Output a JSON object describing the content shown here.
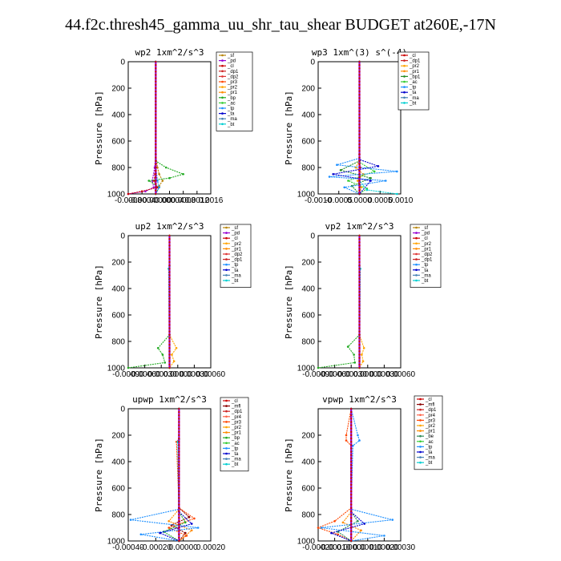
{
  "figure_title": "44.f2c.thresh45_gamma_uu_shr_tau_shear  BUDGET at260E,-17N",
  "colors": {
    "sf": "#b8860b",
    "pd": "#9400d3",
    "cl": "#cc0000",
    "dp1": "#cc2222",
    "dp2": "#dd3333",
    "pr1": "#ff8c00",
    "pr2": "#ffa500",
    "pr3": "#ff4500",
    "pr4": "#ff6347",
    "bp": "#22aa22",
    "bp1": "#228b22",
    "ac": "#33cc33",
    "tp": "#1e90ff",
    "ta": "#0000cd",
    "ma": "#4682b4",
    "bt": "#00ced1",
    "mfl": "#8b0000",
    "be": "#2e8b57"
  },
  "chart_data": [
    {
      "type": "line",
      "title": "wp2   1xm^2/s^3",
      "ylabel": "Pressure [hPa]",
      "xlim": [
        -0.0008,
        0.0016
      ],
      "xticks": [
        "-0.0008",
        "-0.0004",
        "-0.00000",
        "0.00004",
        "0.0008",
        "0.0012",
        "0.0016"
      ],
      "ylim": [
        1000,
        0
      ],
      "yticks": [
        "0",
        "200",
        "400",
        "600",
        "800",
        "1000"
      ],
      "legend": [
        "_sf",
        "_pd",
        "_cl",
        "_dp1",
        "_dp2",
        "_pr3",
        "_pr2",
        "_pr1",
        "_bp",
        "_ac",
        "_tp",
        "_ta",
        "_ma",
        "_bt"
      ],
      "series": [
        {
          "name": "_sf",
          "color": "sf",
          "p": [
            0,
            700,
            800,
            850,
            900,
            940,
            970,
            1000
          ],
          "v": [
            0,
            0,
            5e-05,
            0.0001,
            0.0002,
            0.0001,
            0,
            0
          ]
        },
        {
          "name": "_pd",
          "color": "pd",
          "p": [
            0,
            700,
            800,
            900,
            950,
            980,
            1000
          ],
          "v": [
            0,
            0,
            -3e-05,
            -0.0001,
            -6e-05,
            -0.0003,
            -0.0008
          ]
        },
        {
          "name": "_cl",
          "color": "cl",
          "p": [
            0,
            750,
            850,
            900,
            950,
            980,
            1000
          ],
          "v": [
            0,
            0,
            -2e-05,
            -5e-05,
            5e-05,
            -0.0004,
            -0.0008
          ]
        },
        {
          "name": "_bp",
          "color": "bp",
          "p": [
            0,
            750,
            800,
            850,
            880,
            900,
            950,
            1000
          ],
          "v": [
            0,
            0,
            0.0003,
            0.0008,
            0.0004,
            -0.0002,
            0.0001,
            0
          ]
        },
        {
          "name": "_tp",
          "color": "tp",
          "p": [
            0,
            800,
            900,
            950,
            1000
          ],
          "v": [
            0,
            0,
            5e-05,
            0.0001,
            0
          ]
        },
        {
          "name": "_bt",
          "color": "bt",
          "p": [
            0,
            1000
          ],
          "v": [
            0,
            0
          ]
        }
      ]
    },
    {
      "type": "line",
      "title": "wp3   1xm^(3) s^(-4)",
      "ylabel": "Pressure [hPa]",
      "xlim": [
        -0.0011,
        0.0011
      ],
      "xticks": [
        "-0.0010",
        "-0.0005",
        "0.0000",
        "0.0005",
        "0.0010"
      ],
      "ylim": [
        1000,
        0
      ],
      "yticks": [
        "0",
        "200",
        "400",
        "600",
        "800",
        "1000"
      ],
      "legend": [
        "_cl",
        "_dp1",
        "_pr2",
        "_pr1",
        "_bp1",
        "_ac",
        "_tp",
        "_ta",
        "_ma",
        "_bt"
      ],
      "series": [
        {
          "name": "_cl",
          "color": "cl",
          "p": [
            0,
            700,
            800,
            900,
            1000
          ],
          "v": [
            0,
            0,
            2e-05,
            -2e-05,
            0
          ]
        },
        {
          "name": "_pr2",
          "color": "pr2",
          "p": [
            0,
            750,
            800,
            850,
            900,
            950,
            1000
          ],
          "v": [
            0,
            0,
            -0.0001,
            0.0001,
            -5e-05,
            5e-05,
            0
          ]
        },
        {
          "name": "_bp1",
          "color": "bp1",
          "p": [
            0,
            750,
            820,
            880,
            940,
            1000
          ],
          "v": [
            0,
            0,
            -0.0005,
            0.0003,
            -0.0002,
            0
          ]
        },
        {
          "name": "_ac",
          "color": "ac",
          "p": [
            0,
            760,
            830,
            900,
            960,
            1000
          ],
          "v": [
            0,
            0,
            0.0004,
            -0.0003,
            0.0002,
            0
          ]
        },
        {
          "name": "_tp",
          "color": "tp",
          "p": [
            0,
            730,
            780,
            830,
            870,
            900,
            950,
            1000
          ],
          "v": [
            0,
            0,
            -0.0006,
            0.001,
            -0.0008,
            0.0007,
            -0.0004,
            0
          ]
        },
        {
          "name": "_ta",
          "color": "ta",
          "p": [
            0,
            740,
            790,
            850,
            900,
            1000
          ],
          "v": [
            0,
            0,
            0.0005,
            -0.0007,
            0.0003,
            0
          ]
        },
        {
          "name": "_bt",
          "color": "bt",
          "p": [
            0,
            900,
            970,
            1000
          ],
          "v": [
            0,
            0,
            0.0002,
            0.001
          ]
        }
      ]
    },
    {
      "type": "line",
      "title": "up2   1xm^2/s^3",
      "ylabel": "Pressure [hPa]",
      "xlim": [
        -0.0009,
        0.0009
      ],
      "xticks": [
        "-0.00090",
        "-0.00060",
        "-0.00030",
        "0.00000",
        "0.00030",
        "0.00060"
      ],
      "ylim": [
        1000,
        0
      ],
      "yticks": [
        "0",
        "200",
        "400",
        "600",
        "800",
        "1000"
      ],
      "legend": [
        "_sf",
        "_pd",
        "_cl",
        "_pr2",
        "_pr1",
        "_dp2",
        "_dp1",
        "_tp",
        "_ta",
        "_ma",
        "_bt"
      ],
      "series": [
        {
          "name": "_cl",
          "color": "cl",
          "p": [
            0,
            1000
          ],
          "v": [
            0,
            0
          ]
        },
        {
          "name": "_pr2",
          "color": "pr2",
          "p": [
            0,
            750,
            850,
            900,
            950,
            1000
          ],
          "v": [
            0,
            0,
            0.00015,
            5e-05,
            0.0001,
            0
          ]
        },
        {
          "name": "_dp2",
          "color": "bp",
          "p": [
            0,
            750,
            850,
            900,
            960,
            1000
          ],
          "v": [
            0,
            0,
            -0.00025,
            -0.00015,
            -0.0001,
            -0.0009
          ]
        },
        {
          "name": "_bt",
          "color": "bt",
          "p": [
            0,
            230,
            250,
            1000
          ],
          "v": [
            0,
            0,
            -2e-05,
            0
          ]
        }
      ]
    },
    {
      "type": "line",
      "title": "vp2   1xm^2/s^3",
      "ylabel": "Pressure [hPa]",
      "xlim": [
        -0.0009,
        0.0009
      ],
      "xticks": [
        "-0.00090",
        "-0.00060",
        "-0.00030",
        "0.00000",
        "0.00030",
        "0.00060"
      ],
      "ylim": [
        1000,
        0
      ],
      "yticks": [
        "0",
        "200",
        "400",
        "600",
        "800",
        "1000"
      ],
      "legend": [
        "_sf",
        "_pd",
        "_cl",
        "_pr2",
        "_pr1",
        "_dp2",
        "_dp1",
        "_tp",
        "_ta",
        "_ma",
        "_bt"
      ],
      "series": [
        {
          "name": "_cl",
          "color": "cl",
          "p": [
            0,
            1000
          ],
          "v": [
            0,
            0
          ]
        },
        {
          "name": "_pr2",
          "color": "pr2",
          "p": [
            0,
            750,
            850,
            900,
            950,
            1000
          ],
          "v": [
            0,
            0,
            0.0001,
            5e-05,
            8e-05,
            0
          ]
        },
        {
          "name": "_dp2",
          "color": "bp",
          "p": [
            0,
            750,
            840,
            900,
            960,
            1000
          ],
          "v": [
            0,
            0,
            -0.00025,
            -0.00012,
            -0.0001,
            -0.0009
          ]
        },
        {
          "name": "_bt",
          "color": "bt",
          "p": [
            0,
            230,
            250,
            1000
          ],
          "v": [
            0,
            0,
            2e-05,
            0
          ]
        }
      ]
    },
    {
      "type": "line",
      "title": "upwp   1xm^2/s^3",
      "ylabel": "Pressure [hPa]",
      "xlim": [
        -0.0004,
        0.00025
      ],
      "xticks": [
        "-0.00040",
        "-0.00020",
        "0.00000",
        "0.00020"
      ],
      "ylim": [
        1000,
        0
      ],
      "yticks": [
        "0",
        "200",
        "400",
        "600",
        "800",
        "1000"
      ],
      "legend": [
        "_cl",
        "_mfl",
        "_dp1",
        "_pr4",
        "_pr3",
        "_pr2",
        "_pr1",
        "_bp",
        "_ac",
        "_tp",
        "_ta",
        "_ma",
        "_bt"
      ],
      "series": [
        {
          "name": "_cl",
          "color": "cl",
          "p": [
            0,
            1000
          ],
          "v": [
            0,
            0
          ]
        },
        {
          "name": "_mfl",
          "color": "mfl",
          "p": [
            0,
            750,
            820,
            880,
            940,
            1000
          ],
          "v": [
            0,
            0,
            8e-05,
            -6e-05,
            5e-05,
            0
          ]
        },
        {
          "name": "_pr3",
          "color": "pr3",
          "p": [
            0,
            230,
            250,
            750,
            830,
            900,
            960,
            1000
          ],
          "v": [
            0,
            0,
            -2e-05,
            0,
            0.00012,
            -8e-05,
            6e-05,
            0
          ]
        },
        {
          "name": "_pr1",
          "color": "pr1",
          "p": [
            0,
            760,
            850,
            920,
            1000
          ],
          "v": [
            0,
            0,
            -8e-05,
            0.0001,
            0
          ]
        },
        {
          "name": "_bp",
          "color": "bp",
          "p": [
            0,
            780,
            860,
            930,
            1000
          ],
          "v": [
            0,
            0,
            5e-05,
            -0.00012,
            0
          ]
        },
        {
          "name": "_tp",
          "color": "tp",
          "p": [
            0,
            760,
            840,
            900,
            950,
            1000
          ],
          "v": [
            0,
            0,
            -0.00038,
            0.00015,
            -0.0003,
            0
          ]
        },
        {
          "name": "_ta",
          "color": "ta",
          "p": [
            0,
            780,
            870,
            940,
            1000
          ],
          "v": [
            0,
            0,
            0.0001,
            -0.00015,
            0
          ]
        },
        {
          "name": "_bt",
          "color": "bt",
          "p": [
            0,
            230,
            250,
            1000
          ],
          "v": [
            0,
            0,
            -1e-05,
            0
          ]
        }
      ]
    },
    {
      "type": "line",
      "title": "vpwp   1xm^2/s^3",
      "ylabel": "Pressure [hPa]",
      "xlim": [
        -0.0002,
        0.0003
      ],
      "xticks": [
        "-0.00020",
        "-0.00010",
        "0.00000",
        "0.00010",
        "0.00020",
        "0.00030"
      ],
      "ylim": [
        1000,
        0
      ],
      "yticks": [
        "200",
        "400",
        "600",
        "800",
        "1000"
      ],
      "legend": [
        "_cl",
        "_mfl",
        "_dp1",
        "_pr4",
        "_pr3",
        "_pr2",
        "_pr1",
        "_be",
        "_ac",
        "_tp",
        "_ta",
        "_ma",
        "_bt"
      ],
      "series": [
        {
          "name": "_cl",
          "color": "cl",
          "p": [
            0,
            1000
          ],
          "v": [
            0,
            0
          ]
        },
        {
          "name": "_pr3",
          "color": "pr3",
          "p": [
            0,
            200,
            240,
            280,
            750,
            850,
            900,
            950,
            1000
          ],
          "v": [
            0,
            -3e-05,
            -3e-05,
            0,
            0,
            -0.0001,
            -0.0002,
            -8e-05,
            0
          ]
        },
        {
          "name": "_pr1",
          "color": "pr1",
          "p": [
            0,
            780,
            860,
            920,
            1000
          ],
          "v": [
            0,
            0,
            -5e-05,
            6e-05,
            0
          ]
        },
        {
          "name": "_be",
          "color": "be",
          "p": [
            0,
            780,
            850,
            930,
            1000
          ],
          "v": [
            0,
            0,
            4e-05,
            -8e-05,
            0
          ]
        },
        {
          "name": "_tp",
          "color": "tp",
          "p": [
            0,
            200,
            240,
            280,
            760,
            840,
            900,
            960,
            1000
          ],
          "v": [
            0,
            4e-05,
            5e-05,
            1e-05,
            0,
            0.00025,
            -0.00018,
            0.0002,
            0
          ]
        },
        {
          "name": "_ta",
          "color": "ta",
          "p": [
            0,
            780,
            870,
            940,
            1000
          ],
          "v": [
            0,
            0,
            8e-05,
            -0.00012,
            0
          ]
        },
        {
          "name": "_bt",
          "color": "bt",
          "p": [
            0,
            1000
          ],
          "v": [
            0,
            0
          ]
        }
      ]
    }
  ]
}
